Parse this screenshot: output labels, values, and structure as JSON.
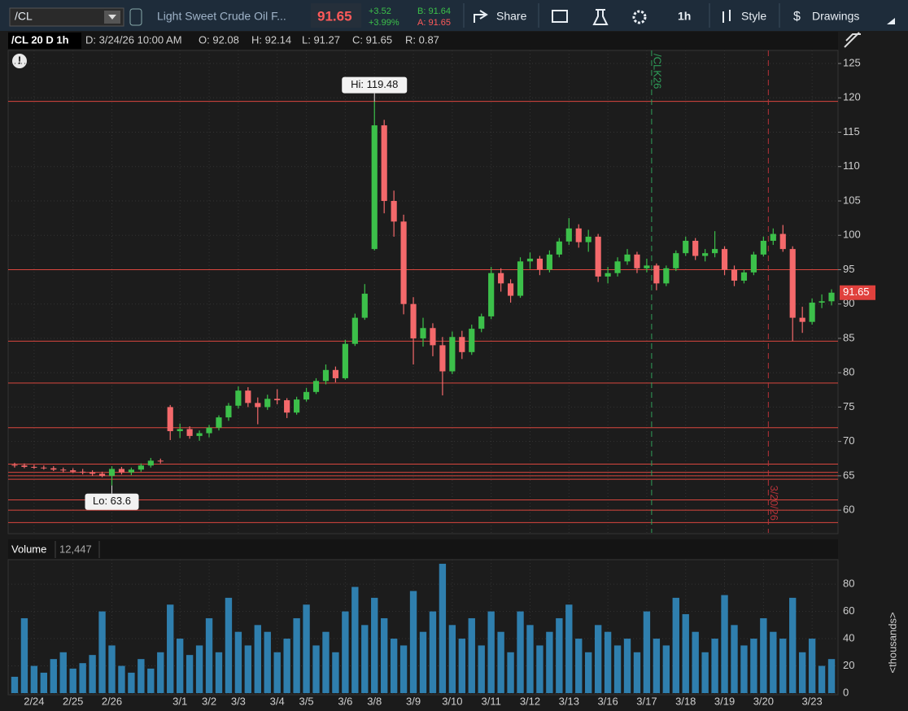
{
  "toolbar": {
    "symbol": "/CL",
    "description": "Light Sweet Crude Oil F...",
    "last": "91.65",
    "change": "+3.52",
    "change_pct": "+3.99%",
    "bid": "B: 91.64",
    "ask": "A: 91.65",
    "share": "Share",
    "interval": "1h",
    "style": "Style",
    "drawings": "Drawings"
  },
  "chart_header": {
    "study": "/CL 20 D 1h",
    "date": "D: 3/24/26 10:00 AM",
    "open": "O: 92.08",
    "high": "H: 92.14",
    "low": "L: 91.27",
    "close": "C: 91.65",
    "range": "R: 0.87"
  },
  "chart_data": [
    {
      "type": "candlestick",
      "categories": [
        null,
        null,
        "2/24",
        null,
        null,
        null,
        "2/25",
        null,
        null,
        null,
        "2/26",
        null,
        null,
        null,
        null,
        null,
        null,
        "3/1",
        null,
        null,
        "3/2",
        null,
        null,
        "3/3",
        null,
        null,
        null,
        "3/4",
        null,
        null,
        "3/5",
        null,
        null,
        null,
        "3/6",
        null,
        null,
        "3/8",
        null,
        null,
        null,
        "3/9",
        null,
        null,
        null,
        "3/10",
        null,
        null,
        null,
        "3/11",
        null,
        null,
        null,
        "3/12",
        null,
        null,
        null,
        "3/13",
        null,
        null,
        null,
        "3/16",
        null,
        null,
        null,
        "3/17",
        null,
        null,
        null,
        "3/18",
        null,
        null,
        null,
        "3/19",
        null,
        null,
        null,
        "3/20",
        null,
        null,
        null,
        null,
        "3/23",
        null,
        null
      ],
      "open": [
        66.6,
        66.5,
        66.3,
        66.2,
        66.1,
        65.9,
        65.8,
        65.6,
        65.5,
        65.3,
        65.0,
        66.0,
        65.5,
        65.9,
        66.5,
        67.2,
        75.0,
        71.5,
        71.8,
        70.8,
        71.2,
        72.0,
        73.5,
        75.2,
        77.4,
        75.6,
        75.0,
        76.2,
        76.0,
        74.2,
        76.1,
        77.2,
        78.8,
        80.4,
        79.2,
        84.2,
        88.0,
        98.0,
        116.0,
        105.0,
        102.0,
        90.0,
        85.0,
        86.5,
        84.0,
        80.2,
        85.2,
        83.0,
        86.4,
        88.2,
        94.5,
        93.0,
        91.2,
        96.2,
        96.6,
        95.0,
        97.2,
        99.1,
        101.0,
        99.0,
        99.8,
        94.0,
        94.5,
        96.2,
        97.2,
        95.2,
        95.6,
        93.0,
        95.2,
        97.4,
        99.2,
        97.0,
        97.4,
        98.0,
        95.0,
        93.4,
        94.6,
        97.2,
        99.2,
        100.2,
        98.0,
        88.0,
        87.4,
        90.2,
        90.4
      ],
      "high": [
        66.9,
        66.8,
        66.6,
        66.5,
        66.4,
        66.2,
        66.1,
        66.0,
        65.8,
        65.6,
        66.4,
        66.3,
        66.2,
        66.8,
        67.6,
        67.5,
        75.3,
        72.6,
        72.2,
        71.6,
        72.4,
        73.8,
        75.6,
        78.0,
        77.9,
        76.4,
        76.8,
        77.6,
        76.3,
        76.5,
        77.8,
        79.2,
        81.2,
        80.9,
        84.8,
        88.6,
        92.9,
        119.48,
        116.8,
        106.5,
        103.0,
        91.0,
        88.0,
        87.2,
        85.2,
        86.0,
        86.1,
        87.0,
        88.6,
        95.4,
        95.2,
        93.6,
        96.8,
        97.5,
        97.0,
        97.8,
        99.6,
        102.5,
        101.6,
        100.8,
        100.2,
        95.4,
        96.8,
        98.0,
        97.6,
        96.6,
        95.9,
        95.6,
        97.8,
        99.8,
        99.6,
        98.0,
        100.6,
        98.4,
        95.6,
        95.0,
        97.6,
        99.8,
        101.0,
        101.5,
        98.4,
        89.6,
        90.8,
        91.4,
        92.14
      ],
      "low": [
        66.2,
        66.1,
        66.0,
        65.9,
        65.7,
        65.5,
        65.4,
        65.2,
        65.0,
        64.8,
        63.6,
        65.2,
        65.1,
        65.6,
        66.2,
        66.8,
        70.2,
        70.5,
        70.4,
        70.1,
        70.6,
        71.6,
        73.0,
        74.8,
        75.0,
        72.5,
        74.6,
        75.4,
        73.4,
        73.9,
        75.8,
        76.9,
        78.3,
        78.6,
        79.0,
        83.9,
        87.7,
        97.8,
        103.2,
        99.8,
        88.5,
        81.2,
        83.8,
        82.4,
        76.7,
        79.8,
        82.0,
        82.6,
        85.9,
        87.8,
        91.8,
        90.2,
        90.9,
        95.1,
        94.2,
        94.6,
        96.8,
        98.6,
        98.2,
        97.6,
        93.2,
        93.0,
        94.0,
        95.7,
        94.5,
        94.6,
        92.0,
        92.6,
        94.8,
        97.0,
        96.4,
        96.2,
        96.8,
        94.2,
        92.6,
        93.0,
        94.2,
        96.9,
        98.6,
        97.6,
        84.6,
        85.8,
        87.0,
        89.4,
        89.8
      ],
      "close": [
        66.5,
        66.3,
        66.2,
        66.1,
        65.9,
        65.8,
        65.6,
        65.5,
        65.3,
        65.0,
        66.0,
        65.5,
        65.9,
        66.5,
        67.2,
        67.1,
        71.5,
        71.8,
        70.8,
        71.2,
        72.0,
        73.5,
        75.2,
        77.4,
        75.6,
        75.0,
        76.2,
        76.0,
        74.2,
        76.1,
        77.2,
        78.8,
        80.4,
        79.2,
        84.2,
        88.0,
        91.5,
        116.0,
        105.0,
        102.0,
        90.0,
        85.0,
        86.5,
        84.0,
        80.2,
        85.2,
        83.0,
        86.4,
        88.2,
        94.5,
        93.0,
        91.2,
        96.2,
        96.6,
        95.0,
        97.2,
        99.1,
        101.0,
        99.0,
        99.8,
        94.0,
        94.5,
        96.2,
        97.2,
        95.2,
        95.6,
        93.0,
        95.2,
        97.4,
        99.2,
        97.0,
        97.4,
        98.0,
        95.0,
        93.4,
        94.6,
        97.2,
        99.2,
        100.2,
        98.0,
        88.0,
        87.4,
        90.2,
        90.4,
        91.65
      ],
      "up_color": "#3cc04a",
      "down_color": "#f4696b",
      "ylim": [
        56.7,
        126.9
      ],
      "yticks": [
        60,
        65,
        70,
        75,
        80,
        85,
        90,
        95,
        100,
        105,
        110,
        115,
        120,
        125
      ],
      "horizontal_lines": [
        119.48,
        95,
        84.6,
        78.5,
        72,
        66.7,
        65.5,
        65,
        64.5,
        61.5,
        60,
        58.2
      ],
      "line_color": "#d9463e",
      "hi_label": {
        "value": 119.48,
        "label": "Hi: 119.48"
      },
      "lo_label": {
        "value": 63.6,
        "label": "Lo: 63.6"
      },
      "last_price": 91.65,
      "vertical_lines": [
        {
          "label": "/CLK26",
          "at": "3/17",
          "color": "#2f9e5a"
        },
        {
          "label": "3/20/26",
          "at": "3/20",
          "color": "#b8333a"
        }
      ]
    },
    {
      "type": "bar",
      "title": "Volume",
      "subtitle": "12,447",
      "y_axis_label": "<thousands>",
      "color": "#2f7fae",
      "values": [
        12,
        55,
        20,
        15,
        25,
        30,
        18,
        22,
        28,
        60,
        35,
        20,
        15,
        25,
        18,
        30,
        65,
        40,
        28,
        35,
        55,
        30,
        70,
        45,
        35,
        50,
        45,
        30,
        40,
        55,
        65,
        35,
        45,
        30,
        60,
        78,
        50,
        70,
        55,
        40,
        35,
        75,
        45,
        60,
        95,
        50,
        40,
        55,
        35,
        60,
        45,
        30,
        60,
        50,
        35,
        45,
        55,
        65,
        40,
        30,
        50,
        45,
        35,
        40,
        30,
        60,
        40,
        35,
        70,
        58,
        45,
        30,
        40,
        72,
        50,
        35,
        40,
        55,
        45,
        40,
        70,
        30,
        40,
        20,
        25
      ],
      "ylim": [
        0,
        98
      ],
      "yticks": [
        0,
        20,
        40,
        60,
        80
      ]
    }
  ]
}
